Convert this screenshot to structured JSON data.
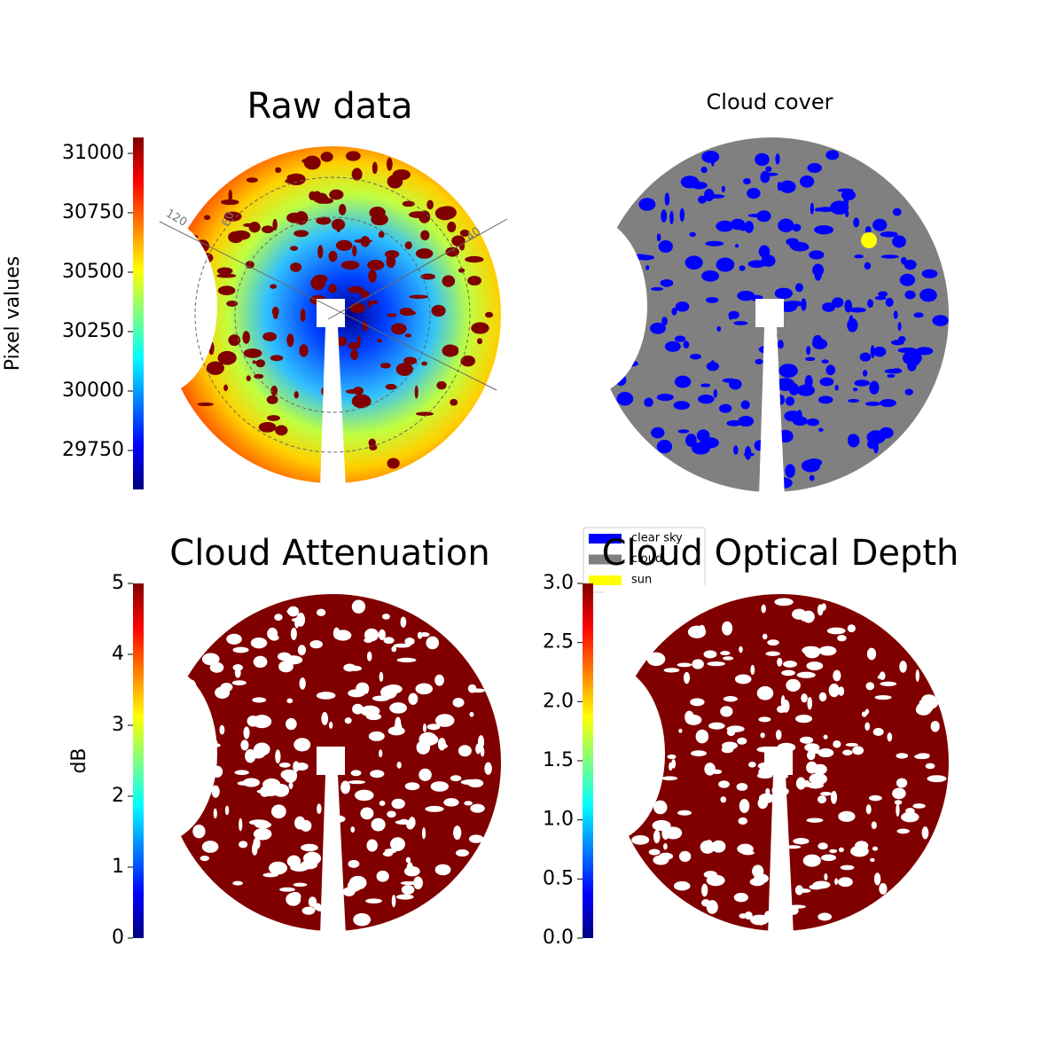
{
  "chart_data": [
    {
      "type": "image",
      "title": "Raw data",
      "annotations": [
        "120",
        "60",
        "40"
      ],
      "colorbar": {
        "label": "Pixel values",
        "lim": [
          29586,
          31067
        ],
        "ticks": [
          29750,
          30000,
          30250,
          30500,
          30750,
          31000
        ]
      }
    },
    {
      "type": "image",
      "title": "Cloud cover",
      "legend": [
        {
          "name": "clear sky",
          "color": "#0000ff"
        },
        {
          "name": "cloud",
          "color": "#808080"
        },
        {
          "name": "sun",
          "color": "#ffff00"
        }
      ]
    },
    {
      "type": "image",
      "title": "Cloud Attenuation",
      "colorbar": {
        "label": "dB",
        "lim": [
          0,
          5
        ],
        "ticks": [
          0,
          1,
          2,
          3,
          4,
          5
        ]
      }
    },
    {
      "type": "image",
      "title": "Cloud Optical Depth",
      "colorbar": {
        "lim": [
          0,
          3
        ],
        "ticks": [
          {
            "value": 0,
            "label": "0.0"
          },
          {
            "value": 0.5,
            "label": "0.5"
          },
          {
            "value": 1,
            "label": "1.0"
          },
          {
            "value": 1.5,
            "label": "1.5"
          },
          {
            "value": 2,
            "label": "2.0"
          },
          {
            "value": 2.5,
            "label": "2.5"
          },
          {
            "value": 3,
            "label": "3.0"
          }
        ]
      }
    }
  ]
}
